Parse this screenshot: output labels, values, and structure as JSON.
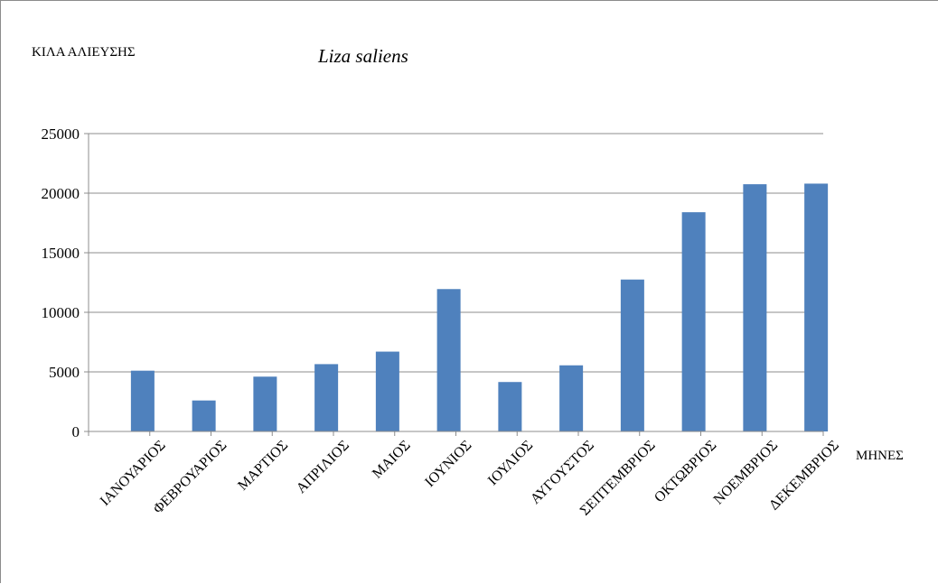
{
  "chart_data": {
    "type": "bar",
    "title": "Liza saliens",
    "ylabel": "ΚΙΛΑ ΑΛΙΕΥΣΗΣ",
    "xlabel": "ΜΗΝΕΣ",
    "categories": [
      "ΙΑΝΟΥΑΡΙΟΣ",
      "ΦΕΒΡΟΥΑΡΙΟΣ",
      "ΜΑΡΤΙΟΣ",
      "ΑΠΡΙΛΙΟΣ",
      "ΜΑΙΟΣ",
      "ΙΟΥΝΙΟΣ",
      "ΙΟΥΛΙΟΣ",
      "ΑΥΓΟΥΣΤΟΣ",
      "ΣΕΠΤΕΜΒΡΙΟΣ",
      "ΟΚΤΩΒΡΙΟΣ",
      "ΝΟΕΜΒΡΙΟΣ",
      "ΔΕΚΕΜΒΡΙΟΣ"
    ],
    "values": [
      5100,
      2600,
      4600,
      5650,
      6700,
      11950,
      4150,
      5550,
      12750,
      18400,
      20750,
      20800
    ],
    "ylim": [
      0,
      25000
    ],
    "yticks": [
      0,
      5000,
      10000,
      15000,
      20000,
      25000
    ],
    "grid": true,
    "legend": "none",
    "bar_color": "#4f81bd",
    "grid_color": "#8c8c8c"
  }
}
